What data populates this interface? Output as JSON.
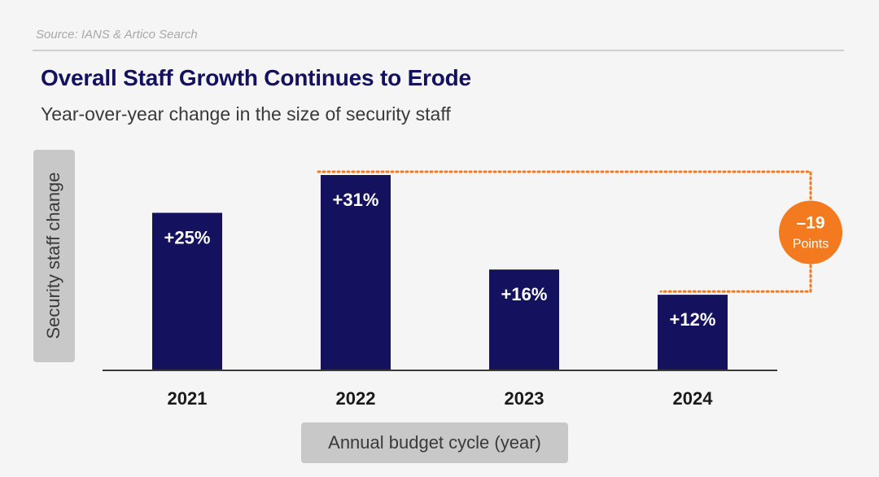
{
  "source": "Source: IANS & Artico Search",
  "colors": {
    "bar": "#14125e",
    "accent": "#f47a1f",
    "title": "#14125e"
  },
  "chart_data": {
    "type": "bar",
    "title": "Overall Staff Growth Continues to Erode",
    "subtitle": "Year-over-year change in the size of security staff",
    "xlabel": "Annual budget cycle (year)",
    "ylabel": "Security staff change",
    "categories": [
      "2021",
      "2022",
      "2023",
      "2024"
    ],
    "values": [
      25,
      31,
      16,
      12
    ],
    "data_labels": [
      "+25%",
      "+31%",
      "+16%",
      "+12%"
    ],
    "ylim": [
      0,
      31
    ],
    "grid": false,
    "annotation": {
      "from": "2022",
      "to": "2024",
      "value": "–19",
      "unit": "Points"
    }
  }
}
